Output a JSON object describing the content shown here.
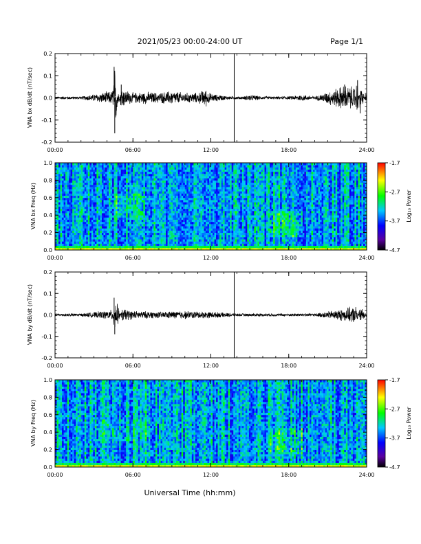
{
  "header": {
    "title": "2021/05/23  00:00-24:00 UT",
    "page": "Page 1/1"
  },
  "footer": {
    "xlabel": "Universal Time (hh:mm)"
  },
  "chart_data": [
    {
      "type": "line",
      "ylabel": "VNA bx dB/dt (nT/sec)",
      "xlim": [
        0,
        24
      ],
      "ylim": [
        -0.2,
        0.2
      ],
      "x_ticks": [
        "00:00",
        "06:00",
        "12:00",
        "18:00",
        "24:00"
      ],
      "y_ticks": [
        "-0.2",
        "-0.1",
        "0.0",
        "0.1",
        "0.2"
      ],
      "series": [
        {
          "x": [
            0,
            2,
            4.4,
            4.55,
            4.6,
            5.1,
            5.3,
            6,
            7,
            8,
            9,
            10,
            11,
            11.6,
            12,
            13.5,
            13.9,
            14.5,
            15,
            16,
            17,
            18,
            19,
            20,
            22.3,
            23,
            23.3,
            23.5,
            24
          ],
          "y": [
            0.0,
            0.0,
            0.03,
            0.14,
            -0.16,
            0.06,
            0.04,
            0.02,
            0.025,
            0.02,
            0.03,
            0.02,
            0.02,
            0.04,
            0.015,
            0.0,
            0.0,
            0.0,
            0.01,
            0.0,
            0.0,
            0.0,
            0.01,
            0.0,
            0.06,
            0.05,
            0.08,
            -0.07,
            0.03
          ]
        }
      ],
      "marker_x": 13.8
    },
    {
      "type": "heatmap",
      "ylabel": "VNA bx Freq (Hz)",
      "colorbar_label": "Log₁₀ Power",
      "colorbar_ticks": [
        "-1.7",
        "-2.7",
        "-3.7",
        "-4.7"
      ],
      "xlim": [
        0,
        24
      ],
      "ylim": [
        0.0,
        1.0
      ],
      "x_ticks": [
        "00:00",
        "06:00",
        "12:00",
        "18:00",
        "24:00"
      ],
      "y_ticks": [
        "0.0",
        "0.2",
        "0.4",
        "0.6",
        "0.8",
        "1.0"
      ],
      "zlim": [
        -4.7,
        -1.7
      ]
    },
    {
      "type": "line",
      "ylabel": "VNA by dB/dt (nT/sec)",
      "xlim": [
        0,
        24
      ],
      "ylim": [
        -0.2,
        0.2
      ],
      "x_ticks": [
        "00:00",
        "06:00",
        "12:00",
        "18:00",
        "24:00"
      ],
      "y_ticks": [
        "-0.2",
        "-0.1",
        "0.0",
        "0.1",
        "0.2"
      ],
      "series": [
        {
          "x": [
            0,
            2,
            4.4,
            4.55,
            4.6,
            5.2,
            6,
            8,
            10,
            12,
            14,
            16,
            18,
            20,
            23.3,
            23.5,
            24
          ],
          "y": [
            0.0,
            0.0,
            0.02,
            0.08,
            -0.09,
            0.03,
            0.015,
            0.01,
            0.015,
            0.01,
            0.0,
            0.0,
            0.0,
            0.0,
            0.04,
            -0.05,
            0.01
          ]
        }
      ],
      "marker_x": 13.8
    },
    {
      "type": "heatmap",
      "ylabel": "VNA by Freq (Hz)",
      "colorbar_label": "Log₁₀ Power",
      "colorbar_ticks": [
        "-1.7",
        "-2.7",
        "-3.7",
        "-4.7"
      ],
      "xlim": [
        0,
        24
      ],
      "ylim": [
        0.0,
        1.0
      ],
      "x_ticks": [
        "00:00",
        "06:00",
        "12:00",
        "18:00",
        "24:00"
      ],
      "y_ticks": [
        "0.0",
        "0.2",
        "0.4",
        "0.6",
        "0.8",
        "1.0"
      ],
      "zlim": [
        -4.7,
        -1.7
      ]
    }
  ]
}
